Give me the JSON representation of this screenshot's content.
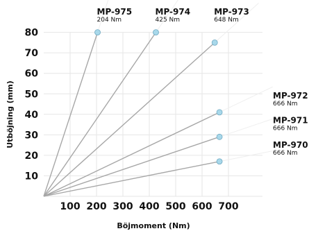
{
  "chart_data": {
    "type": "line",
    "title": "",
    "xlabel": "Böjmoment (Nm)",
    "ylabel": "Utböjning (mm)",
    "xlim": [
      0,
      800
    ],
    "ylim": [
      0,
      80
    ],
    "xticks": [
      100,
      200,
      300,
      400,
      500,
      600,
      700
    ],
    "yticks": [
      10,
      20,
      30,
      40,
      50,
      60,
      70,
      80
    ],
    "grid": true,
    "line_color": "#a7a7a7",
    "marker_color": "#a8d8ea",
    "marker_stroke": "#6fa9c2",
    "series": [
      {
        "name": "MP-975",
        "torque": "204 Nm",
        "label_placement": "top",
        "points": [
          [
            0,
            0
          ],
          [
            204,
            80
          ]
        ]
      },
      {
        "name": "MP-974",
        "torque": "425 Nm",
        "label_placement": "top",
        "points": [
          [
            0,
            0
          ],
          [
            425,
            80
          ]
        ]
      },
      {
        "name": "MP-973",
        "torque": "648 Nm",
        "label_placement": "top",
        "points": [
          [
            0,
            0
          ],
          [
            648,
            75
          ]
        ]
      },
      {
        "name": "MP-972",
        "torque": "666 Nm",
        "label_placement": "right",
        "points": [
          [
            0,
            0
          ],
          [
            666,
            41
          ]
        ]
      },
      {
        "name": "MP-971",
        "torque": "666 Nm",
        "label_placement": "right",
        "points": [
          [
            0,
            0
          ],
          [
            666,
            29
          ]
        ]
      },
      {
        "name": "MP-970",
        "torque": "666 Nm",
        "label_placement": "right",
        "points": [
          [
            0,
            0
          ],
          [
            666,
            17
          ]
        ]
      }
    ]
  }
}
